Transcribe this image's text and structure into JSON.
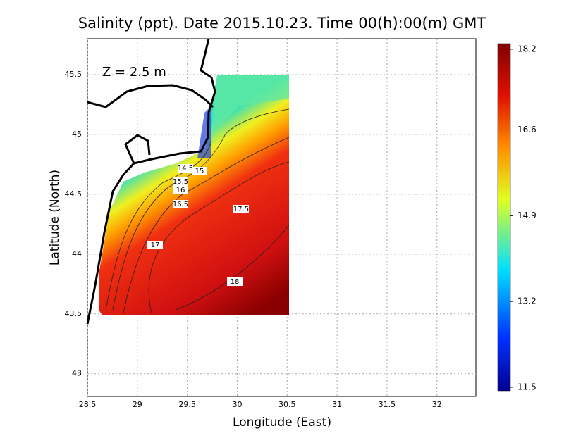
{
  "chart_data": {
    "type": "contour",
    "title": "Salinity (ppt). Date 2015.10.23. Time 00(h):00(m) GMT",
    "annotation": "Z = 2.5 m",
    "x_label": "Longitude (East)",
    "y_label": "Latitude (North)",
    "xlim": [
      28.5,
      32.39
    ],
    "ylim": [
      42.81,
      45.8
    ],
    "xticks": [
      28.5,
      29,
      29.5,
      30,
      30.5,
      31,
      31.5,
      32
    ],
    "yticks": [
      43,
      43.5,
      44,
      44.5,
      45,
      45.5
    ],
    "grid": true,
    "contour_labels": [
      14.5,
      15,
      15.5,
      16,
      16.5,
      17,
      17.5,
      18
    ],
    "colorbar": {
      "lim": [
        11.43,
        18.31
      ],
      "ticks": [
        18.2,
        16.6,
        14.9,
        13.2,
        11.5
      ]
    }
  }
}
